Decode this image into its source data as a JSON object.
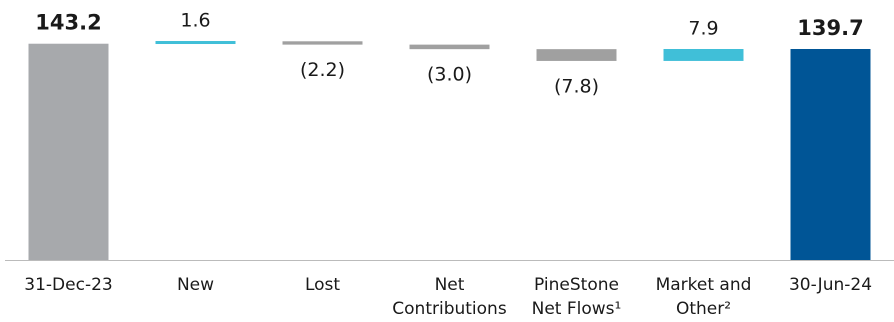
{
  "chart_data": {
    "type": "waterfall",
    "categories": [
      [
        "31-Dec-23"
      ],
      [
        "New"
      ],
      [
        "Lost"
      ],
      [
        "Net",
        "Contributions"
      ],
      [
        "PineStone",
        "Net Flows¹"
      ],
      [
        "Market and",
        "Other²"
      ],
      [
        "30-Jun-24"
      ]
    ],
    "kinds": [
      "total",
      "delta",
      "delta",
      "delta",
      "delta",
      "delta",
      "total"
    ],
    "values": [
      143.2,
      1.6,
      -2.2,
      -3.0,
      -7.8,
      7.9,
      139.7
    ],
    "value_labels": [
      "143.2",
      "1.6",
      "(2.2)",
      "(3.0)",
      "(7.8)",
      "7.9",
      "139.7"
    ],
    "colors": [
      "#a7a9ac",
      "#40bfd8",
      "#a0a0a0",
      "#a0a0a0",
      "#a0a0a0",
      "#40bfd8",
      "#005596"
    ],
    "ylim": [
      0,
      145
    ]
  }
}
